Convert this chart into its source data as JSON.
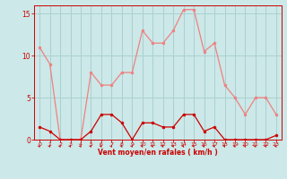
{
  "x": [
    0,
    1,
    2,
    3,
    4,
    5,
    6,
    7,
    8,
    9,
    10,
    11,
    12,
    13,
    14,
    15,
    16,
    17,
    18,
    19,
    20,
    21,
    22,
    23
  ],
  "y_rafales": [
    11,
    9,
    0,
    0,
    0,
    8,
    6.5,
    6.5,
    8,
    8,
    13,
    11.5,
    11.5,
    13,
    15.5,
    15.5,
    10.5,
    11.5,
    6.5,
    5,
    3,
    5,
    5,
    3
  ],
  "y_moyen": [
    1.5,
    1,
    0,
    0,
    0,
    1,
    3,
    3,
    2,
    0,
    2,
    2,
    1.5,
    1.5,
    3,
    3,
    1,
    1.5,
    0,
    0,
    0,
    0,
    0,
    0.5
  ],
  "color_rafales": "#f08080",
  "color_moyen": "#cc0000",
  "bg_color": "#cce8e8",
  "grid_color": "#aad0d0",
  "xlabel": "Vent moyen/en rafales ( km/h )",
  "xlabel_color": "#cc0000",
  "tick_color": "#cc0000",
  "ylim": [
    0,
    16
  ],
  "yticks": [
    0,
    5,
    10,
    15
  ],
  "xticks": [
    0,
    1,
    2,
    3,
    4,
    5,
    6,
    7,
    8,
    9,
    10,
    11,
    12,
    13,
    14,
    15,
    16,
    17,
    18,
    19,
    20,
    21,
    22,
    23
  ]
}
